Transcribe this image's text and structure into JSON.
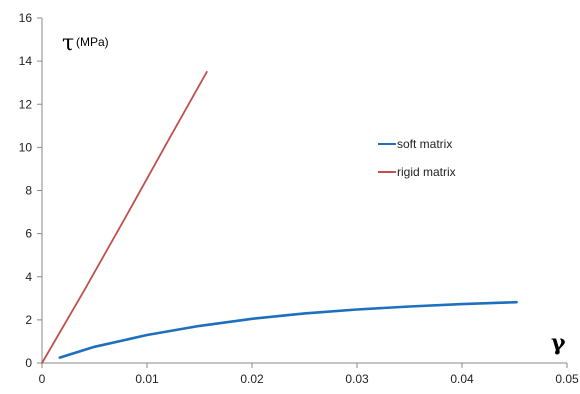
{
  "chart_data": {
    "type": "line",
    "title": "",
    "xlabel": "γ",
    "ylabel_symbol": "τ",
    "ylabel_unit": "(MPa)",
    "xlim": [
      0,
      0.05
    ],
    "ylim": [
      0,
      16
    ],
    "xticks": [
      "0",
      "0.01",
      "0.02",
      "0.03",
      "0.04",
      "0.05"
    ],
    "yticks": [
      "0",
      "2",
      "4",
      "6",
      "8",
      "10",
      "12",
      "14",
      "16"
    ],
    "xtick_values": [
      0,
      0.01,
      0.02,
      0.03,
      0.04,
      0.05
    ],
    "ytick_values": [
      0,
      2,
      4,
      6,
      8,
      10,
      12,
      14,
      16
    ],
    "grid": false,
    "legend_position": "right",
    "series": [
      {
        "name": "soft matrix",
        "color": "#1f6fbf",
        "x": [
          0.0017,
          0.005,
          0.01,
          0.015,
          0.02,
          0.025,
          0.03,
          0.035,
          0.04,
          0.0452
        ],
        "y": [
          0.25,
          0.75,
          1.3,
          1.72,
          2.05,
          2.3,
          2.48,
          2.62,
          2.73,
          2.82
        ]
      },
      {
        "name": "rigid matrix",
        "color": "#c0504d",
        "x": [
          0,
          0.004,
          0.008,
          0.012,
          0.0157
        ],
        "y": [
          0,
          3.35,
          6.8,
          10.3,
          13.5
        ]
      }
    ]
  }
}
